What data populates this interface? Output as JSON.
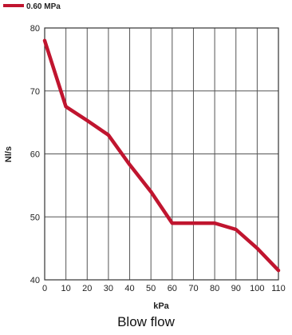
{
  "caption": "Blow flow",
  "chart_data": {
    "type": "line",
    "title": "",
    "xlabel": "kPa",
    "ylabel": "Nl/s",
    "xlim": [
      0,
      110
    ],
    "ylim": [
      40,
      80
    ],
    "x_ticks": [
      0,
      10,
      20,
      30,
      40,
      50,
      60,
      70,
      80,
      90,
      100,
      110
    ],
    "y_ticks": [
      40,
      50,
      60,
      70,
      80
    ],
    "grid": true,
    "legend_position": "top-left",
    "series": [
      {
        "name": "0.60 MPa",
        "color": "#c0152f",
        "x": [
          0,
          10,
          20,
          30,
          40,
          50,
          60,
          70,
          80,
          90,
          100,
          110
        ],
        "y": [
          78,
          67.5,
          65.3,
          63,
          58.3,
          54,
          49,
          49,
          49,
          48,
          45,
          41.5
        ]
      }
    ]
  }
}
